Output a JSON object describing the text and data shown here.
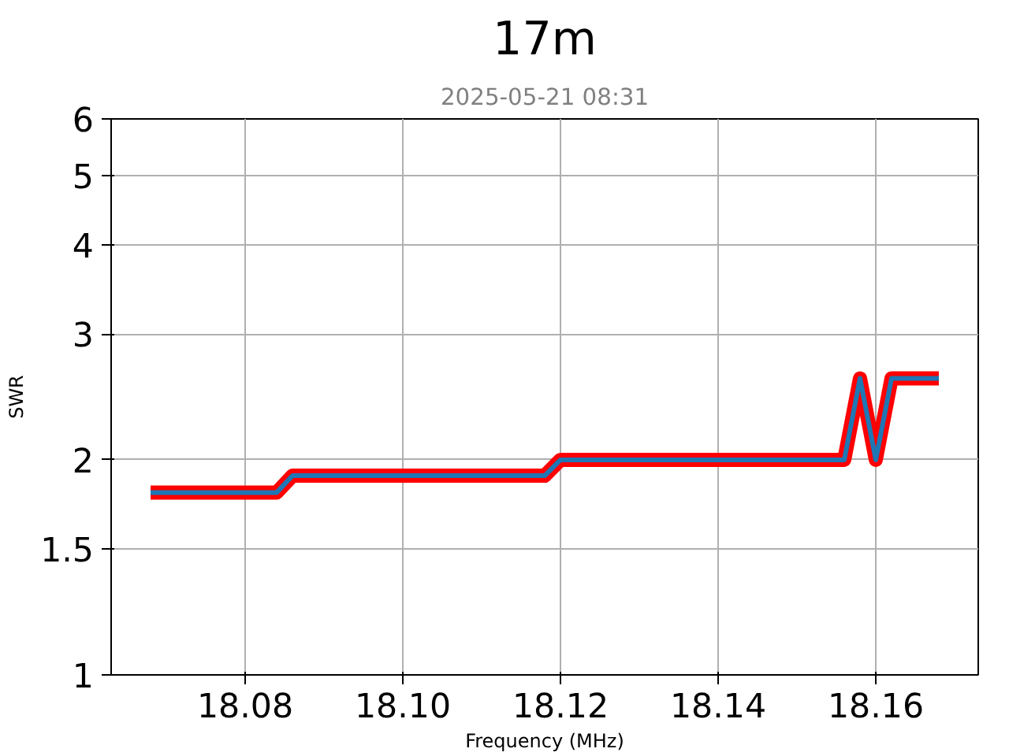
{
  "chart_data": {
    "type": "line",
    "title": "17m",
    "subtitle": "2025-05-21 08:31",
    "xlabel": "Frequency (MHz)",
    "ylabel": "SWR",
    "x": [
      18.068,
      18.084,
      18.086,
      18.118,
      18.12,
      18.156,
      18.158,
      18.16,
      18.162,
      18.168
    ],
    "series": [
      {
        "color": "#ff0000",
        "values": [
          1.8,
          1.8,
          1.9,
          1.9,
          2.0,
          2.0,
          2.6,
          2.0,
          2.6,
          2.6
        ]
      },
      {
        "color": "#1f77b4",
        "values": [
          1.8,
          1.8,
          1.9,
          1.9,
          2.0,
          2.0,
          2.6,
          2.0,
          2.6,
          2.6
        ]
      }
    ],
    "xlim": [
      18.063,
      18.173
    ],
    "ylim": [
      1,
      6
    ],
    "xticks": [
      18.08,
      {
        "value": 18.1,
        "label": "18.10"
      },
      18.12,
      18.14,
      18.16
    ],
    "yticks": [
      1,
      1.5,
      2,
      3,
      4,
      5,
      6
    ],
    "log": "y",
    "grid": true
  }
}
